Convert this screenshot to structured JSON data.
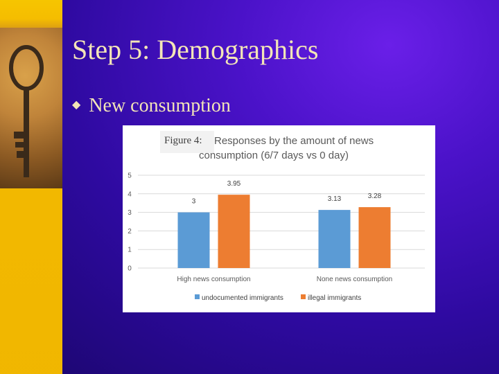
{
  "slide": {
    "title": "Step 5: Demographics",
    "bullet_text": "New consumption",
    "bullet_marker": "◆",
    "colors": {
      "text": "#f3e5b7",
      "background": "#3a10b4",
      "accent_strip": "#f5bd00"
    }
  },
  "chart_data": {
    "type": "bar",
    "figure_prefix": "Figure 4:",
    "title_line1": "Responses by the amount of news",
    "title_line2": "consumption (6/7 days vs 0 day)",
    "categories": [
      "High news consumption",
      "None news consumption"
    ],
    "series": [
      {
        "name": "undocumented immigrants",
        "values": [
          3,
          3.13
        ],
        "labels": [
          "3",
          "3.13"
        ],
        "color": "#5b9bd5"
      },
      {
        "name": "illegal immigrants",
        "values": [
          3.95,
          3.28
        ],
        "labels": [
          "3.95",
          "3.28"
        ],
        "color": "#ed7d31"
      }
    ],
    "ylim": [
      0,
      5
    ],
    "yticks": [
      0,
      1,
      2,
      3,
      4,
      5
    ],
    "grid": true,
    "legend_position": "bottom"
  }
}
